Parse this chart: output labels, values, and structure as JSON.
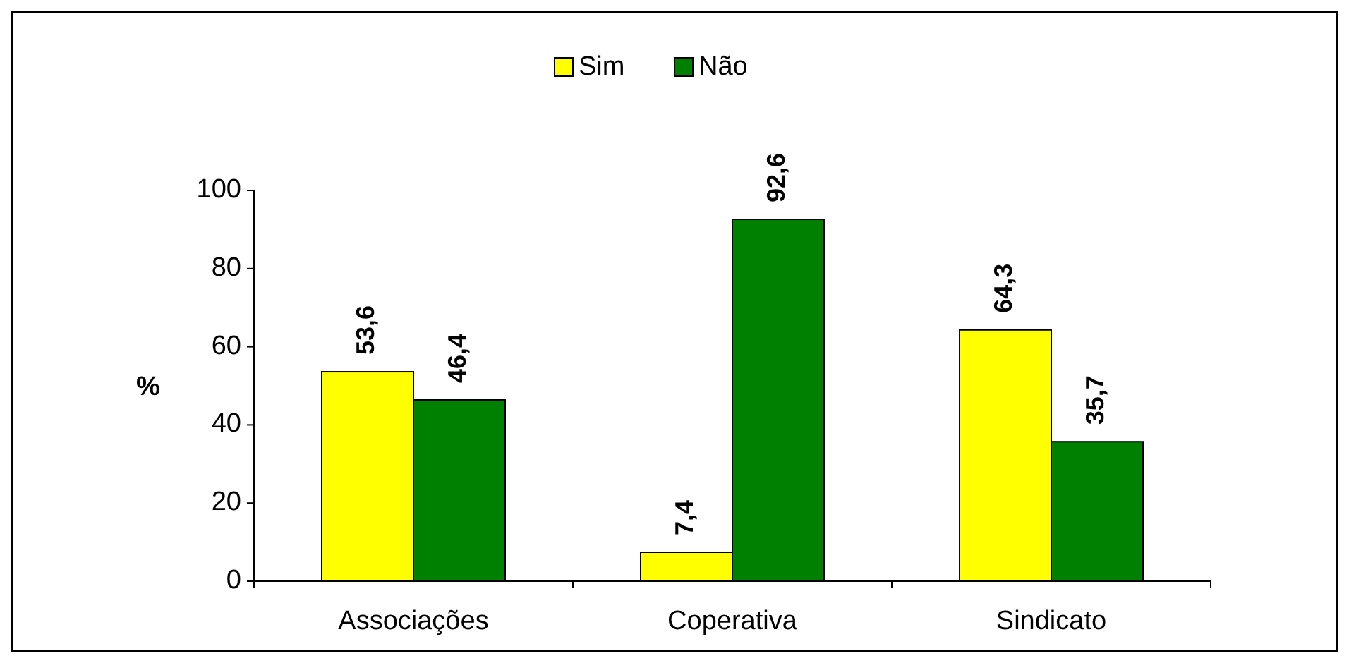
{
  "chart_data": {
    "type": "bar",
    "categories": [
      "Associações",
      "Coperativa",
      "Sindicato"
    ],
    "ylabel": "%",
    "ylim": [
      0,
      100
    ],
    "yticks": [
      0,
      20,
      40,
      60,
      80,
      100
    ],
    "legend": "top",
    "grid": false,
    "series": [
      {
        "name": "Sim",
        "color": "#ffff00",
        "values": [
          53.6,
          7.4,
          64.3
        ],
        "value_labels": [
          "53,6",
          "7,4",
          "64,3"
        ]
      },
      {
        "name": "Não",
        "color": "#008000",
        "values": [
          46.4,
          92.6,
          35.7
        ],
        "value_labels": [
          "46,4",
          "92,6",
          "35,7"
        ]
      }
    ]
  }
}
